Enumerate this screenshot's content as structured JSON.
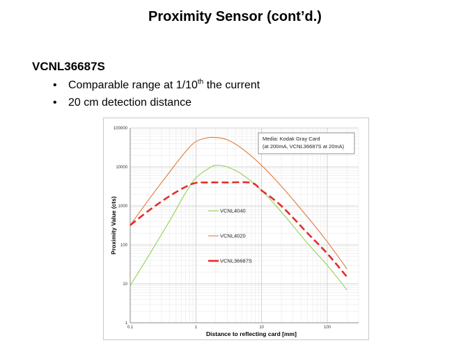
{
  "slide": {
    "title": "Proximity Sensor (cont’d.)",
    "heading": "VCNL36687S",
    "bullets": [
      {
        "pre": "Comparable range at 1/10",
        "sup": "th",
        "post": " the current"
      },
      {
        "pre": "20 cm detection distance",
        "sup": "",
        "post": ""
      }
    ]
  },
  "chart_data": {
    "type": "line",
    "x_scale": "log",
    "y_scale": "log",
    "xlim": [
      0.1,
      300
    ],
    "ylim": [
      1,
      100000
    ],
    "x_ticks": [
      "0.1",
      "1",
      "10",
      "100"
    ],
    "y_ticks": [
      "1",
      "10",
      "100",
      "1000",
      "10000",
      "100000"
    ],
    "xlabel": "Distance to reflecting card [mm]",
    "ylabel": "Proximity Value (cts)",
    "grid": true,
    "legend_position": "center",
    "annotation": [
      "Media: Kodak Gray Card",
      "(at 200mA, VCNL36687S at 20mA)"
    ],
    "series": [
      {
        "name": "VCNL4040",
        "color": "#92d050",
        "dash": "solid",
        "points": [
          [
            0.1,
            9
          ],
          [
            0.2,
            60
          ],
          [
            0.4,
            420
          ],
          [
            0.7,
            2200
          ],
          [
            1,
            5200
          ],
          [
            1.5,
            8800
          ],
          [
            2,
            11000
          ],
          [
            3,
            10000
          ],
          [
            5,
            6500
          ],
          [
            10,
            2500
          ],
          [
            20,
            700
          ],
          [
            50,
            110
          ],
          [
            100,
            30
          ],
          [
            200,
            7
          ]
        ]
      },
      {
        "name": "VCNL4020",
        "color": "#e07b39",
        "dash": "solid",
        "points": [
          [
            0.1,
            320
          ],
          [
            0.2,
            1600
          ],
          [
            0.4,
            7500
          ],
          [
            0.7,
            25000
          ],
          [
            1,
            45000
          ],
          [
            1.5,
            56000
          ],
          [
            2,
            57000
          ],
          [
            3,
            50000
          ],
          [
            5,
            30000
          ],
          [
            10,
            11000
          ],
          [
            20,
            3200
          ],
          [
            50,
            520
          ],
          [
            100,
            120
          ],
          [
            200,
            24
          ]
        ]
      },
      {
        "name": "VCNL36687S",
        "color": "#e52b2b",
        "dash": "dashed",
        "points": [
          [
            0.1,
            320
          ],
          [
            0.2,
            800
          ],
          [
            0.4,
            1800
          ],
          [
            0.7,
            3100
          ],
          [
            1,
            3900
          ],
          [
            1.5,
            4000
          ],
          [
            3,
            4000
          ],
          [
            7,
            3900
          ],
          [
            10,
            2500
          ],
          [
            20,
            1000
          ],
          [
            50,
            200
          ],
          [
            100,
            60
          ],
          [
            200,
            15
          ]
        ]
      }
    ]
  }
}
